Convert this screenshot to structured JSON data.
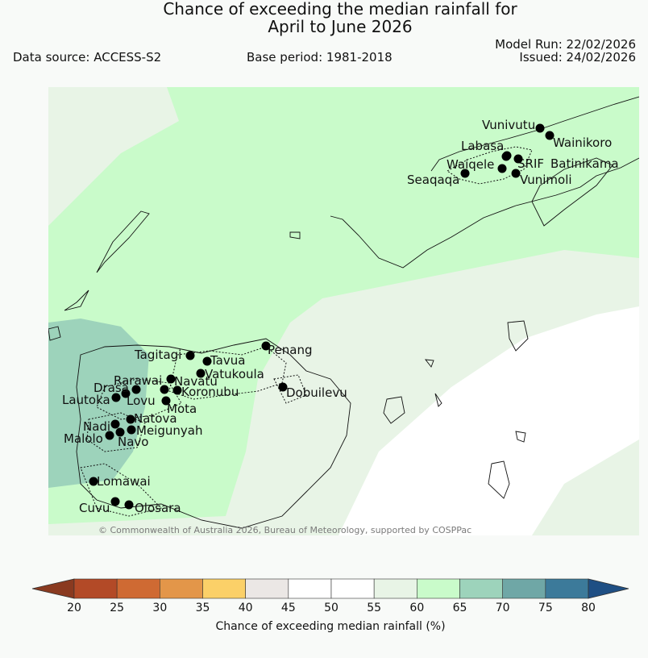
{
  "header": {
    "title_line1": "Chance of exceeding the median rainfall for",
    "title_line2": "April to June 2026",
    "data_source": "Data source: ACCESS-S2",
    "base_period": "Base period: 1981-2018",
    "model_run": "Model Run: 22/02/2026",
    "issued": "Issued: 24/02/2026"
  },
  "map": {
    "copyright": "© Commonwealth of Australia 2026, Bureau of Meteorology, supported by COSPPac",
    "stations": [
      "Vunivutu",
      "Wainikoro",
      "Labasa",
      "Waiqele",
      "SRIF",
      "Batinikama",
      "Seaqaqa",
      "Vunimoli",
      "Penang",
      "Tagitagi",
      "Tavua",
      "Vatukoula",
      "Rarawai",
      "Navatu",
      "Drasa",
      "Koronubu",
      "Lautoka",
      "Lovu",
      "Mota",
      "Dobuilevu",
      "Natova",
      "Nadi",
      "Meigunyah",
      "Malolo",
      "Navo",
      "Lomawai",
      "Cuvu",
      "Olosara"
    ]
  },
  "colorbar": {
    "label": "Chance of exceeding median rainfall (%)",
    "ticks": [
      "20",
      "25",
      "30",
      "35",
      "40",
      "45",
      "50",
      "55",
      "60",
      "65",
      "70",
      "75",
      "80"
    ],
    "colors": [
      "#b34a27",
      "#cf6a33",
      "#e39649",
      "#fbd068",
      "#ebe7e5",
      "#ffffff",
      "#ffffff",
      "#e8f4e6",
      "#c9fbca",
      "#9dd3bb",
      "#6fa7a6",
      "#3c7a9a"
    ],
    "low_color": "#8a3a20",
    "high_color": "#1f4f84"
  }
}
